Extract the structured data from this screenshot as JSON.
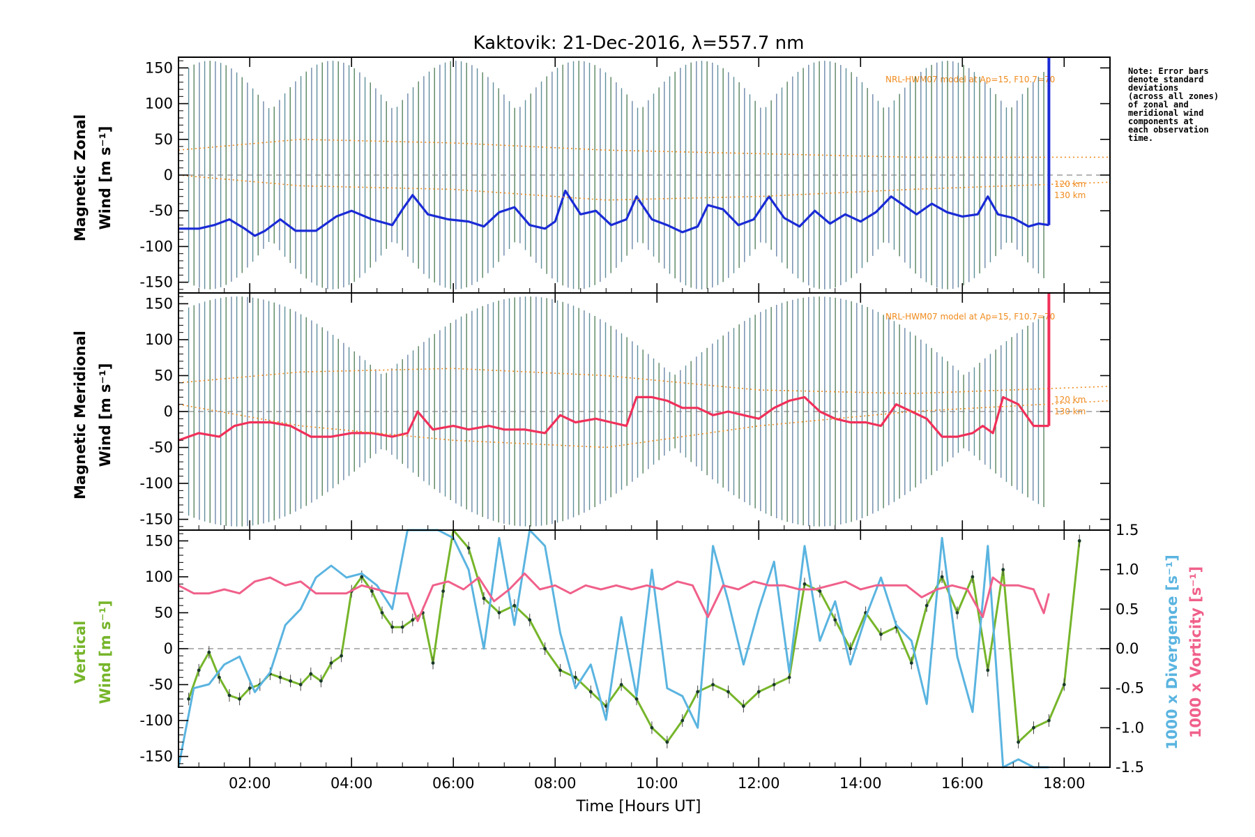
{
  "chart_data": [
    {
      "type": "line",
      "title": "Kaktovik: 21-Dec-2016, λ=557.7 nm",
      "ylabel_line1": "Magnetic Zonal",
      "ylabel_line2": "Wind [m s⁻¹]",
      "xlim": [
        0.6,
        18.9
      ],
      "ylim": [
        -165,
        165
      ],
      "yticks": [
        -150,
        -100,
        -50,
        0,
        50,
        100,
        150
      ],
      "model_label": "NRL-HWM07 model at Ap=15, F10.7=70",
      "alt_labels": [
        "120 km",
        "130 km"
      ],
      "note": [
        "Note: Error bars",
        "denote standard",
        "deviations",
        "(across all zones)",
        "of zonal and",
        "meridional wind",
        "components at",
        "each observation",
        "time."
      ],
      "series": [
        {
          "color": "#1a2bd6",
          "x": [
            0.6,
            1.0,
            1.3,
            1.6,
            1.9,
            2.1,
            2.3,
            2.6,
            2.9,
            3.3,
            3.7,
            4.0,
            4.4,
            4.8,
            5.0,
            5.2,
            5.5,
            5.9,
            6.3,
            6.6,
            6.9,
            7.2,
            7.5,
            7.8,
            8.0,
            8.2,
            8.5,
            8.8,
            9.1,
            9.4,
            9.6,
            9.9,
            10.2,
            10.5,
            10.8,
            11.0,
            11.3,
            11.6,
            11.9,
            12.2,
            12.5,
            12.8,
            13.1,
            13.4,
            13.7,
            14.0,
            14.3,
            14.6,
            14.9,
            15.1,
            15.4,
            15.7,
            16.0,
            16.3,
            16.5,
            16.7,
            17.0,
            17.3,
            17.5,
            17.7
          ],
          "y": [
            -75,
            -75,
            -70,
            -62,
            -75,
            -85,
            -78,
            -62,
            -78,
            -78,
            -58,
            -50,
            -62,
            -70,
            -48,
            -28,
            -55,
            -62,
            -65,
            -72,
            -52,
            -45,
            -70,
            -75,
            -65,
            -22,
            -55,
            -50,
            -70,
            -62,
            -30,
            -62,
            -70,
            -80,
            -72,
            -42,
            -48,
            -70,
            -62,
            -30,
            -60,
            -72,
            -50,
            -68,
            -55,
            -65,
            -52,
            -30,
            -45,
            -55,
            -40,
            -52,
            -58,
            -55,
            -30,
            -55,
            -60,
            -72,
            -68,
            -70
          ]
        },
        {
          "color": "#f08a1c",
          "x": [
            0.6,
            3.0,
            6.0,
            9.0,
            12.0,
            15.0,
            18.9
          ],
          "y": [
            35,
            50,
            45,
            35,
            30,
            25,
            25
          ]
        },
        {
          "color": "#f08a1c",
          "x": [
            0.6,
            3.0,
            6.0,
            9.0,
            12.0,
            15.0,
            18.9
          ],
          "y": [
            0,
            -15,
            -20,
            -35,
            -30,
            -20,
            -10
          ]
        }
      ]
    },
    {
      "type": "line",
      "ylabel_line1": "Magnetic Meridional",
      "ylabel_line2": "Wind [m s⁻¹]",
      "xlim": [
        0.6,
        18.9
      ],
      "ylim": [
        -165,
        165
      ],
      "yticks": [
        -150,
        -100,
        -50,
        0,
        50,
        100,
        150
      ],
      "model_label": "NRL-HWM07 model at Ap=15, F10.7=70",
      "alt_labels": [
        "120 km",
        "130 km"
      ],
      "series": [
        {
          "color": "#f0305a",
          "x": [
            0.6,
            1.0,
            1.4,
            1.7,
            2.0,
            2.4,
            2.8,
            3.2,
            3.6,
            4.0,
            4.4,
            4.8,
            5.1,
            5.3,
            5.6,
            6.0,
            6.3,
            6.7,
            7.0,
            7.4,
            7.8,
            8.1,
            8.4,
            8.8,
            9.1,
            9.4,
            9.6,
            9.9,
            10.2,
            10.5,
            10.8,
            11.1,
            11.4,
            11.7,
            12.0,
            12.3,
            12.6,
            12.9,
            13.2,
            13.5,
            13.8,
            14.1,
            14.4,
            14.7,
            15.0,
            15.3,
            15.6,
            15.9,
            16.2,
            16.4,
            16.6,
            16.8,
            17.1,
            17.4,
            17.7
          ],
          "y": [
            -40,
            -30,
            -35,
            -20,
            -15,
            -15,
            -20,
            -35,
            -35,
            -30,
            -30,
            -35,
            -30,
            0,
            -25,
            -20,
            -25,
            -20,
            -25,
            -25,
            -30,
            -5,
            -15,
            -10,
            -15,
            -20,
            20,
            20,
            15,
            5,
            5,
            -5,
            0,
            -5,
            -10,
            5,
            15,
            20,
            0,
            -10,
            -15,
            -15,
            -20,
            10,
            0,
            -10,
            -35,
            -35,
            -30,
            -20,
            -30,
            20,
            10,
            -20,
            -20
          ]
        },
        {
          "color": "#f08a1c",
          "x": [
            0.6,
            3.0,
            6.0,
            9.0,
            12.0,
            15.0,
            18.9
          ],
          "y": [
            40,
            55,
            60,
            50,
            30,
            25,
            35
          ]
        },
        {
          "color": "#f08a1c",
          "x": [
            0.6,
            3.0,
            6.0,
            9.0,
            12.0,
            15.0,
            18.9
          ],
          "y": [
            10,
            -20,
            -40,
            -50,
            -20,
            0,
            15
          ]
        }
      ]
    },
    {
      "type": "line",
      "xlabel": "Time [Hours UT]",
      "xticks": [
        "02:00",
        "04:00",
        "06:00",
        "08:00",
        "10:00",
        "12:00",
        "14:00",
        "16:00",
        "18:00"
      ],
      "xtick_values": [
        2,
        4,
        6,
        8,
        10,
        12,
        14,
        16,
        18
      ],
      "xlim": [
        0.6,
        18.9
      ],
      "ylim": [
        -165,
        165
      ],
      "yticks": [
        -150,
        -100,
        -50,
        0,
        50,
        100,
        150
      ],
      "y2lim": [
        -1.5,
        1.5
      ],
      "y2ticks": [
        "-1.5",
        "-1.0",
        "-0.5",
        "0.0",
        "0.5",
        "1.0",
        "1.5"
      ],
      "y2tick_values": [
        -1.5,
        -1.0,
        -0.5,
        0.0,
        0.5,
        1.0,
        1.5
      ],
      "ylabel_line1": "Vertical",
      "ylabel_line2": "Wind [m s⁻¹]",
      "y2label_a": "1000 x Divergence [s⁻¹]",
      "y2label_b": "1000 x Vorticity [s⁻¹]",
      "series": [
        {
          "color": "#76b52a",
          "axis": "left",
          "x": [
            0.8,
            1.0,
            1.2,
            1.4,
            1.6,
            1.8,
            2.0,
            2.2,
            2.4,
            2.6,
            2.8,
            3.0,
            3.2,
            3.4,
            3.6,
            3.8,
            4.0,
            4.2,
            4.4,
            4.6,
            4.8,
            5.0,
            5.2,
            5.4,
            5.6,
            5.8,
            6.0,
            6.3,
            6.6,
            6.9,
            7.2,
            7.5,
            7.8,
            8.1,
            8.4,
            8.7,
            9.0,
            9.3,
            9.6,
            9.9,
            10.2,
            10.5,
            10.8,
            11.1,
            11.4,
            11.7,
            12.0,
            12.3,
            12.6,
            12.9,
            13.2,
            13.5,
            13.8,
            14.1,
            14.4,
            14.7,
            15.0,
            15.3,
            15.6,
            15.9,
            16.2,
            16.5,
            16.8,
            17.1,
            17.4,
            17.7,
            18.0,
            18.3
          ],
          "y": [
            -70,
            -30,
            -5,
            -40,
            -65,
            -70,
            -55,
            -50,
            -35,
            -40,
            -45,
            -50,
            -35,
            -45,
            -20,
            -10,
            80,
            100,
            80,
            50,
            30,
            30,
            40,
            50,
            -20,
            80,
            170,
            140,
            70,
            50,
            60,
            40,
            0,
            -30,
            -40,
            -60,
            -80,
            -50,
            -70,
            -110,
            -130,
            -100,
            -60,
            -50,
            -60,
            -80,
            -60,
            -50,
            -40,
            90,
            80,
            40,
            0,
            50,
            20,
            30,
            -20,
            60,
            100,
            50,
            100,
            -30,
            110,
            -130,
            -110,
            -100,
            -50,
            150
          ]
        },
        {
          "color": "#5ab4e0",
          "axis": "right",
          "x": [
            0.6,
            0.9,
            1.2,
            1.5,
            1.8,
            2.1,
            2.4,
            2.7,
            3.0,
            3.3,
            3.6,
            3.9,
            4.2,
            4.5,
            4.8,
            5.1,
            5.4,
            5.7,
            6.0,
            6.3,
            6.6,
            6.9,
            7.2,
            7.5,
            7.8,
            8.1,
            8.4,
            8.7,
            9.0,
            9.3,
            9.6,
            9.9,
            10.2,
            10.5,
            10.8,
            11.1,
            11.4,
            11.7,
            12.0,
            12.3,
            12.6,
            12.9,
            13.2,
            13.5,
            13.8,
            14.1,
            14.4,
            14.7,
            15.0,
            15.3,
            15.6,
            15.9,
            16.2,
            16.5,
            16.8,
            17.1,
            17.4,
            17.7
          ],
          "y": [
            -1.5,
            -0.5,
            -0.45,
            -0.2,
            -0.1,
            -0.55,
            -0.3,
            0.3,
            0.5,
            0.9,
            1.05,
            0.9,
            0.95,
            0.8,
            0.5,
            1.5,
            1.6,
            1.6,
            1.4,
            1.0,
            0.0,
            1.4,
            0.3,
            1.6,
            1.3,
            0.2,
            -0.5,
            -0.2,
            -0.9,
            0.4,
            -0.6,
            1.0,
            -0.5,
            -0.6,
            -1.0,
            1.3,
            0.6,
            -0.2,
            0.5,
            1.1,
            -0.3,
            1.3,
            0.1,
            0.6,
            -0.2,
            0.4,
            0.9,
            0.3,
            0.1,
            -0.7,
            1.4,
            -0.1,
            -0.8,
            1.3,
            -1.5,
            -1.4,
            -1.5,
            -1.5
          ]
        },
        {
          "color": "#f0608a",
          "axis": "right",
          "x": [
            0.6,
            0.9,
            1.2,
            1.5,
            1.8,
            2.1,
            2.4,
            2.7,
            3.0,
            3.3,
            3.6,
            3.9,
            4.2,
            4.5,
            4.8,
            5.1,
            5.3,
            5.6,
            5.9,
            6.2,
            6.5,
            6.8,
            7.1,
            7.4,
            7.7,
            8.0,
            8.3,
            8.6,
            8.9,
            9.2,
            9.5,
            9.8,
            10.1,
            10.4,
            10.7,
            11.0,
            11.3,
            11.6,
            11.9,
            12.2,
            12.5,
            12.8,
            13.1,
            13.4,
            13.7,
            14.0,
            14.3,
            14.6,
            14.9,
            15.2,
            15.5,
            15.8,
            16.1,
            16.4,
            16.6,
            16.8,
            17.1,
            17.4,
            17.6,
            17.7
          ],
          "y": [
            0.8,
            0.7,
            0.7,
            0.75,
            0.7,
            0.85,
            0.9,
            0.8,
            0.85,
            0.7,
            0.7,
            0.7,
            0.8,
            0.75,
            0.7,
            0.7,
            0.35,
            0.8,
            0.85,
            0.75,
            0.9,
            0.6,
            0.75,
            0.95,
            0.75,
            0.8,
            0.7,
            0.8,
            0.75,
            0.8,
            0.75,
            0.8,
            0.75,
            0.85,
            0.8,
            0.4,
            0.8,
            0.75,
            0.85,
            0.8,
            0.8,
            0.75,
            0.75,
            0.8,
            0.85,
            0.75,
            0.8,
            0.8,
            0.8,
            0.65,
            0.75,
            0.8,
            0.75,
            0.4,
            0.9,
            0.8,
            0.8,
            0.75,
            0.45,
            0.7
          ]
        }
      ]
    }
  ]
}
